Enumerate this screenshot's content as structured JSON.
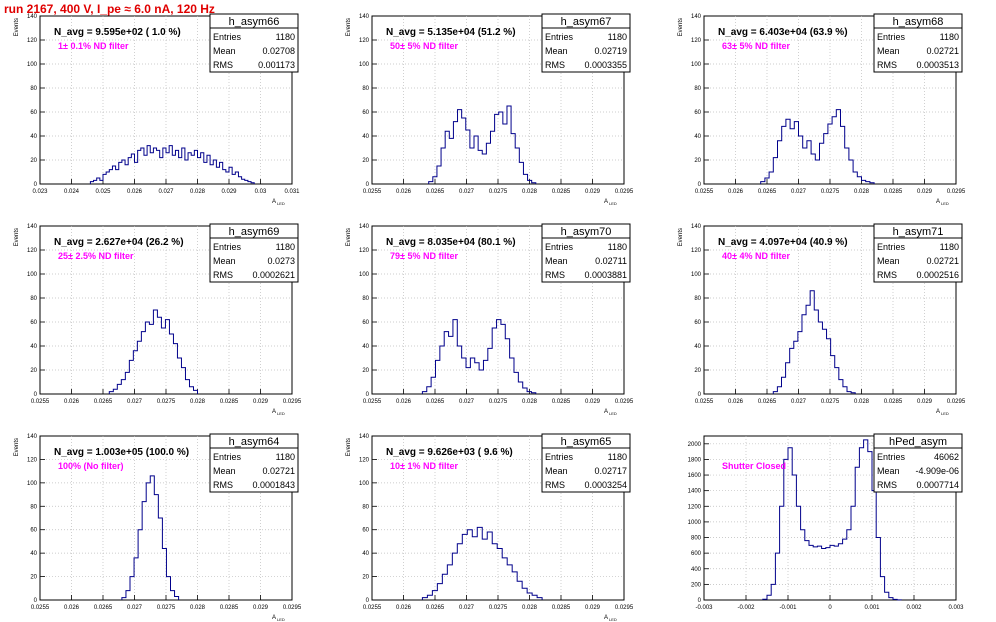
{
  "page_title": "run 2167,   400 V, I_pe ≈ 6.0 nA, 120 Hz",
  "chart_data": [
    {
      "type": "histogram",
      "name": "h_asym66",
      "stats": {
        "entries": "1180",
        "mean": "0.02708",
        "rms": "0.001173"
      },
      "nlabel": "N_avg = 9.595e+02 ( 1.0 %)",
      "filter": "1± 0.1% ND filter",
      "ylabel": "Events",
      "xlabel": "A_{LED}",
      "xlim": [
        0.023,
        0.031
      ],
      "ylim": [
        0,
        140
      ],
      "xticks": [
        "0.023",
        "0.024",
        "0.025",
        "0.026",
        "0.027",
        "0.028",
        "0.029",
        "0.03",
        "0.031"
      ],
      "yticks": [
        "0",
        "20",
        "40",
        "60",
        "80",
        "100",
        "120",
        "140"
      ],
      "xtick_values": [
        0.023,
        0.024,
        0.025,
        0.026,
        0.027,
        0.028,
        0.029,
        0.03,
        0.031
      ],
      "ytick_values": [
        0,
        20,
        40,
        60,
        80,
        100,
        120,
        140
      ],
      "bins": {
        "start": 0.0246,
        "end": 0.0298,
        "values": [
          2,
          3,
          5,
          3,
          8,
          10,
          12,
          15,
          12,
          18,
          20,
          16,
          22,
          25,
          18,
          28,
          30,
          24,
          32,
          26,
          30,
          28,
          22,
          30,
          26,
          32,
          24,
          28,
          22,
          30,
          20,
          26,
          24,
          28,
          22,
          26,
          18,
          24,
          16,
          20,
          14,
          18,
          12,
          10,
          14,
          8,
          10,
          6,
          4,
          3,
          2,
          1
        ]
      }
    },
    {
      "type": "histogram",
      "name": "h_asym67",
      "stats": {
        "entries": "1180",
        "mean": "0.02719",
        "rms": "0.0003355"
      },
      "nlabel": "N_avg = 5.135e+04 (51.2 %)",
      "filter": "50± 5% ND filter",
      "ylabel": "Events",
      "xlabel": "A_{LED}",
      "xlim": [
        0.0255,
        0.0295
      ],
      "ylim": [
        0,
        140
      ],
      "xticks": [
        "0.0255",
        "0.026",
        "0.0265",
        "0.027",
        "0.0275",
        "0.028",
        "0.0285",
        "0.029",
        "0.0295"
      ],
      "yticks": [
        "0",
        "20",
        "40",
        "60",
        "80",
        "100",
        "120",
        "140"
      ],
      "xtick_values": [
        0.0255,
        0.026,
        0.0265,
        0.027,
        0.0275,
        0.028,
        0.0285,
        0.029,
        0.0295
      ],
      "ytick_values": [
        0,
        20,
        40,
        60,
        80,
        100,
        120,
        140
      ],
      "bins": {
        "start": 0.0264,
        "end": 0.0281,
        "values": [
          2,
          6,
          15,
          30,
          44,
          38,
          52,
          62,
          55,
          45,
          30,
          40,
          28,
          25,
          34,
          44,
          58,
          60,
          50,
          65,
          42,
          30,
          18,
          8,
          3,
          1
        ]
      }
    },
    {
      "type": "histogram",
      "name": "h_asym68",
      "stats": {
        "entries": "1180",
        "mean": "0.02721",
        "rms": "0.0003513"
      },
      "nlabel": "N_avg = 6.403e+04 (63.9 %)",
      "filter": "63± 5% ND filter",
      "ylabel": "Events",
      "xlabel": "A_{LED}",
      "xlim": [
        0.0255,
        0.0295
      ],
      "ylim": [
        0,
        140
      ],
      "xticks": [
        "0.0255",
        "0.026",
        "0.0265",
        "0.027",
        "0.0275",
        "0.028",
        "0.0285",
        "0.029",
        "0.0295"
      ],
      "yticks": [
        "0",
        "20",
        "40",
        "60",
        "80",
        "100",
        "120",
        "140"
      ],
      "xtick_values": [
        0.0255,
        0.026,
        0.0265,
        0.027,
        0.0275,
        0.028,
        0.0285,
        0.029,
        0.0295
      ],
      "ytick_values": [
        0,
        20,
        40,
        60,
        80,
        100,
        120,
        140
      ],
      "bins": {
        "start": 0.0264,
        "end": 0.0282,
        "values": [
          2,
          5,
          10,
          22,
          36,
          48,
          54,
          46,
          52,
          40,
          30,
          36,
          25,
          20,
          34,
          42,
          50,
          56,
          62,
          48,
          30,
          20,
          10,
          6,
          3,
          2,
          1
        ]
      }
    },
    {
      "type": "histogram",
      "name": "h_asym69",
      "stats": {
        "entries": "1180",
        "mean": "0.0273",
        "rms": "0.0002621"
      },
      "nlabel": "N_avg = 2.627e+04 (26.2 %)",
      "filter": "25± 2.5% ND filter",
      "ylabel": "Events",
      "xlabel": "A_{LED}",
      "xlim": [
        0.0255,
        0.0295
      ],
      "ylim": [
        0,
        140
      ],
      "xticks": [
        "0.0255",
        "0.026",
        "0.0265",
        "0.027",
        "0.0275",
        "0.028",
        "0.0285",
        "0.029",
        "0.0295"
      ],
      "yticks": [
        "0",
        "20",
        "40",
        "60",
        "80",
        "100",
        "120",
        "140"
      ],
      "xtick_values": [
        0.0255,
        0.026,
        0.0265,
        0.027,
        0.0275,
        0.028,
        0.0285,
        0.029,
        0.0295
      ],
      "ytick_values": [
        0,
        20,
        40,
        60,
        80,
        100,
        120,
        140
      ],
      "bins": {
        "start": 0.0266,
        "end": 0.028,
        "values": [
          2,
          4,
          8,
          12,
          18,
          28,
          36,
          44,
          52,
          60,
          58,
          70,
          64,
          55,
          62,
          50,
          42,
          30,
          22,
          12,
          6,
          3
        ]
      }
    },
    {
      "type": "histogram",
      "name": "h_asym70",
      "stats": {
        "entries": "1180",
        "mean": "0.02711",
        "rms": "0.0003881"
      },
      "nlabel": "N_avg = 8.035e+04 (80.1 %)",
      "filter": "79± 5% ND filter",
      "ylabel": "Events",
      "xlabel": "A_{LED}",
      "xlim": [
        0.0255,
        0.0295
      ],
      "ylim": [
        0,
        140
      ],
      "xticks": [
        "0.0255",
        "0.026",
        "0.0265",
        "0.027",
        "0.0275",
        "0.028",
        "0.0285",
        "0.029",
        "0.0295"
      ],
      "yticks": [
        "0",
        "20",
        "40",
        "60",
        "80",
        "100",
        "120",
        "140"
      ],
      "xtick_values": [
        0.0255,
        0.026,
        0.0265,
        0.027,
        0.0275,
        0.028,
        0.0285,
        0.029,
        0.0295
      ],
      "ytick_values": [
        0,
        20,
        40,
        60,
        80,
        100,
        120,
        140
      ],
      "bins": {
        "start": 0.0263,
        "end": 0.0281,
        "values": [
          2,
          6,
          14,
          28,
          40,
          52,
          48,
          62,
          40,
          30,
          22,
          30,
          26,
          20,
          28,
          38,
          55,
          62,
          58,
          46,
          30,
          18,
          10,
          5,
          2,
          1
        ]
      }
    },
    {
      "type": "histogram",
      "name": "h_asym71",
      "stats": {
        "entries": "1180",
        "mean": "0.02721",
        "rms": "0.0002516"
      },
      "nlabel": "N_avg = 4.097e+04 (40.9 %)",
      "filter": "40± 4% ND filter",
      "ylabel": "Events",
      "xlabel": "A_{LED}",
      "xlim": [
        0.0255,
        0.0295
      ],
      "ylim": [
        0,
        140
      ],
      "xticks": [
        "0.0255",
        "0.026",
        "0.0265",
        "0.027",
        "0.0275",
        "0.028",
        "0.0285",
        "0.029",
        "0.0295"
      ],
      "yticks": [
        "0",
        "20",
        "40",
        "60",
        "80",
        "100",
        "120",
        "140"
      ],
      "xtick_values": [
        0.0255,
        0.026,
        0.0265,
        0.027,
        0.0275,
        0.028,
        0.0285,
        0.029,
        0.0295
      ],
      "ytick_values": [
        0,
        20,
        40,
        60,
        80,
        100,
        120,
        140
      ],
      "bins": {
        "start": 0.0266,
        "end": 0.0279,
        "values": [
          2,
          6,
          14,
          26,
          38,
          44,
          52,
          66,
          74,
          86,
          70,
          60,
          54,
          46,
          32,
          22,
          12,
          6,
          2,
          1
        ]
      }
    },
    {
      "type": "histogram",
      "name": "h_asym64",
      "stats": {
        "entries": "1180",
        "mean": "0.02721",
        "rms": "0.0001843"
      },
      "nlabel": "N_avg = 1.003e+05 (100.0 %)",
      "filter": "100% (No filter)",
      "ylabel": "Events",
      "xlabel": "A_{LED}",
      "xlim": [
        0.0255,
        0.0295
      ],
      "ylim": [
        0,
        140
      ],
      "xticks": [
        "0.0255",
        "0.026",
        "0.0265",
        "0.027",
        "0.0275",
        "0.028",
        "0.0285",
        "0.029",
        "0.0295"
      ],
      "yticks": [
        "0",
        "20",
        "40",
        "60",
        "80",
        "100",
        "120",
        "140"
      ],
      "xtick_values": [
        0.0255,
        0.026,
        0.0265,
        0.027,
        0.0275,
        0.028,
        0.0285,
        0.029,
        0.0295
      ],
      "ytick_values": [
        0,
        20,
        40,
        60,
        80,
        100,
        120,
        140
      ],
      "bins": {
        "start": 0.0268,
        "end": 0.0277,
        "values": [
          2,
          8,
          20,
          36,
          60,
          84,
          100,
          106,
          90,
          70,
          44,
          20,
          8,
          3
        ]
      }
    },
    {
      "type": "histogram",
      "name": "h_asym65",
      "stats": {
        "entries": "1180",
        "mean": "0.02717",
        "rms": "0.0003254"
      },
      "nlabel": "N_avg = 9.626e+03 ( 9.6 %)",
      "filter": "10± 1% ND filter",
      "ylabel": "Events",
      "xlabel": "A_{LED}",
      "xlim": [
        0.0255,
        0.0295
      ],
      "ylim": [
        0,
        140
      ],
      "xticks": [
        "0.0255",
        "0.026",
        "0.0265",
        "0.027",
        "0.0275",
        "0.028",
        "0.0285",
        "0.029",
        "0.0295"
      ],
      "yticks": [
        "0",
        "20",
        "40",
        "60",
        "80",
        "100",
        "120",
        "140"
      ],
      "xtick_values": [
        0.0255,
        0.026,
        0.0265,
        0.027,
        0.0275,
        0.028,
        0.0285,
        0.029,
        0.0295
      ],
      "ytick_values": [
        0,
        20,
        40,
        60,
        80,
        100,
        120,
        140
      ],
      "bins": {
        "start": 0.0263,
        "end": 0.0282,
        "values": [
          2,
          4,
          8,
          14,
          22,
          30,
          40,
          48,
          56,
          60,
          54,
          62,
          52,
          58,
          48,
          44,
          36,
          30,
          24,
          16,
          10,
          6,
          4,
          2
        ]
      }
    },
    {
      "type": "histogram",
      "name": "hPed_asym",
      "stats": {
        "entries": "46062",
        "mean": "-4.909e-06",
        "rms": "0.0007714"
      },
      "nlabel": "",
      "filter": "Shutter Closed",
      "ylabel": "",
      "xlabel": "",
      "xlim": [
        -0.003,
        0.003
      ],
      "ylim": [
        0,
        2100
      ],
      "xticks": [
        "-0.003",
        "-0.002",
        "-0.001",
        "0",
        "0.001",
        "0.002",
        "0.003"
      ],
      "yticks": [
        "0",
        "200",
        "400",
        "600",
        "800",
        "1000",
        "1200",
        "1400",
        "1600",
        "1800",
        "2000"
      ],
      "xtick_values": [
        -0.003,
        -0.002,
        -0.001,
        0,
        0.001,
        0.002,
        0.003
      ],
      "ytick_values": [
        0,
        200,
        400,
        600,
        800,
        1000,
        1200,
        1400,
        1600,
        1800,
        2000
      ],
      "bins": {
        "start": -0.0016,
        "end": 0.0017,
        "values": [
          10,
          60,
          200,
          600,
          1200,
          1800,
          1950,
          1600,
          1200,
          900,
          760,
          700,
          680,
          690,
          660,
          670,
          700,
          690,
          720,
          780,
          900,
          1200,
          1700,
          1950,
          2050,
          1900,
          1400,
          800,
          300,
          100,
          30,
          8,
          2
        ]
      }
    }
  ]
}
